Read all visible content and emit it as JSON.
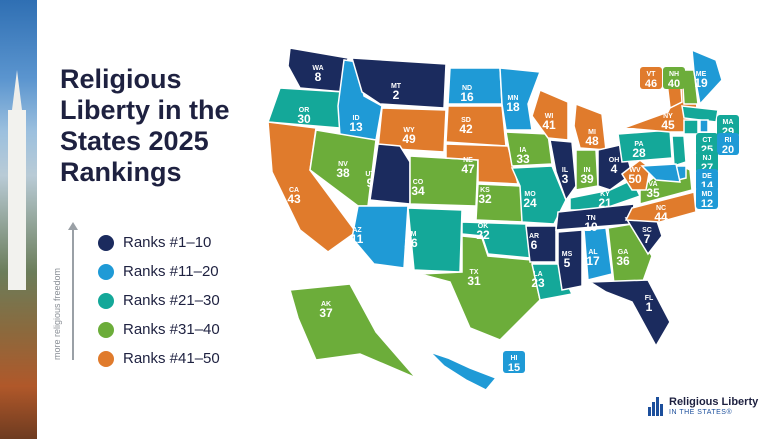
{
  "title": "Religious Liberty in the States 2025 Rankings",
  "legend": [
    {
      "label": "Ranks #1–10",
      "color": "#1b2b5e"
    },
    {
      "label": "Ranks #11–20",
      "color": "#1f9ad6"
    },
    {
      "label": "Ranks #21–30",
      "color": "#14a899"
    },
    {
      "label": "Ranks #31–40",
      "color": "#6cad3a"
    },
    {
      "label": "Ranks #41–50",
      "color": "#e07b2c"
    }
  ],
  "axis_label": "more religious freedom",
  "states": [
    {
      "abbr": "WA",
      "rank": "8"
    },
    {
      "abbr": "OR",
      "rank": "30"
    },
    {
      "abbr": "CA",
      "rank": "43"
    },
    {
      "abbr": "ID",
      "rank": "13"
    },
    {
      "abbr": "NV",
      "rank": "38"
    },
    {
      "abbr": "MT",
      "rank": "2"
    },
    {
      "abbr": "WY",
      "rank": "49"
    },
    {
      "abbr": "UT",
      "rank": "9"
    },
    {
      "abbr": "AZ",
      "rank": "11"
    },
    {
      "abbr": "CO",
      "rank": "34"
    },
    {
      "abbr": "NM",
      "rank": "26"
    },
    {
      "abbr": "ND",
      "rank": "16"
    },
    {
      "abbr": "SD",
      "rank": "42"
    },
    {
      "abbr": "NE",
      "rank": "47"
    },
    {
      "abbr": "KS",
      "rank": "32"
    },
    {
      "abbr": "OK",
      "rank": "22"
    },
    {
      "abbr": "TX",
      "rank": "31"
    },
    {
      "abbr": "MN",
      "rank": "18"
    },
    {
      "abbr": "IA",
      "rank": "33"
    },
    {
      "abbr": "MO",
      "rank": "24"
    },
    {
      "abbr": "AR",
      "rank": "6"
    },
    {
      "abbr": "LA",
      "rank": "23"
    },
    {
      "abbr": "WI",
      "rank": "41"
    },
    {
      "abbr": "IL",
      "rank": "3"
    },
    {
      "abbr": "MI",
      "rank": "48"
    },
    {
      "abbr": "IN",
      "rank": "39"
    },
    {
      "abbr": "OH",
      "rank": "4"
    },
    {
      "abbr": "KY",
      "rank": "21"
    },
    {
      "abbr": "TN",
      "rank": "10"
    },
    {
      "abbr": "MS",
      "rank": "5"
    },
    {
      "abbr": "AL",
      "rank": "17"
    },
    {
      "abbr": "GA",
      "rank": "36"
    },
    {
      "abbr": "FL",
      "rank": "1"
    },
    {
      "abbr": "SC",
      "rank": "7"
    },
    {
      "abbr": "NC",
      "rank": "44"
    },
    {
      "abbr": "VA",
      "rank": "35"
    },
    {
      "abbr": "WV",
      "rank": "50"
    },
    {
      "abbr": "PA",
      "rank": "28"
    },
    {
      "abbr": "NY",
      "rank": "45"
    },
    {
      "abbr": "VT",
      "rank": "46"
    },
    {
      "abbr": "NH",
      "rank": "40"
    },
    {
      "abbr": "ME",
      "rank": "19"
    },
    {
      "abbr": "MA",
      "rank": "29"
    },
    {
      "abbr": "CT",
      "rank": "25"
    },
    {
      "abbr": "RI",
      "rank": "20"
    },
    {
      "abbr": "NJ",
      "rank": "27"
    },
    {
      "abbr": "DE",
      "rank": "14"
    },
    {
      "abbr": "MD",
      "rank": "12"
    },
    {
      "abbr": "AK",
      "rank": "37"
    },
    {
      "abbr": "HI",
      "rank": "15"
    }
  ],
  "logo": {
    "line1": "Religious Liberty",
    "line2": "IN THE STATES®"
  }
}
